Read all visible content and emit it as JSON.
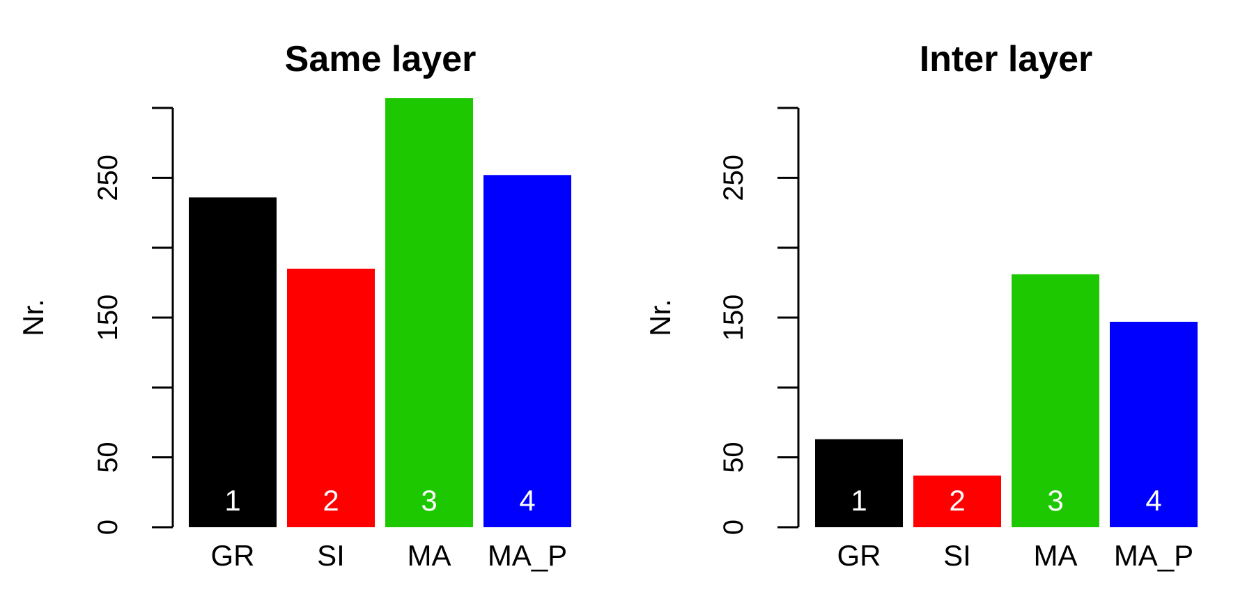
{
  "chart_data": [
    {
      "type": "bar",
      "title": "Same layer",
      "ylabel": "Nr.",
      "xlabel": "",
      "categories": [
        "GR",
        "SI",
        "MA",
        "MA_P"
      ],
      "values": [
        236,
        185,
        307,
        252
      ],
      "bar_labels": [
        "1",
        "2",
        "3",
        "4"
      ],
      "colors": [
        "#000000",
        "#ff0000",
        "#1ec800",
        "#0000ff"
      ],
      "ylim": [
        0,
        300
      ],
      "yticks": [
        0,
        50,
        100,
        150,
        200,
        250,
        300
      ],
      "ytick_labels": [
        "0",
        "50",
        "",
        "150",
        "",
        "250",
        ""
      ],
      "grid": false
    },
    {
      "type": "bar",
      "title": "Inter layer",
      "ylabel": "Nr.",
      "xlabel": "",
      "categories": [
        "GR",
        "SI",
        "MA",
        "MA_P"
      ],
      "values": [
        63,
        37,
        181,
        147
      ],
      "bar_labels": [
        "1",
        "2",
        "3",
        "4"
      ],
      "colors": [
        "#000000",
        "#ff0000",
        "#1ec800",
        "#0000ff"
      ],
      "ylim": [
        0,
        300
      ],
      "yticks": [
        0,
        50,
        100,
        150,
        200,
        250,
        300
      ],
      "ytick_labels": [
        "0",
        "50",
        "",
        "150",
        "",
        "250",
        ""
      ],
      "grid": false
    }
  ]
}
